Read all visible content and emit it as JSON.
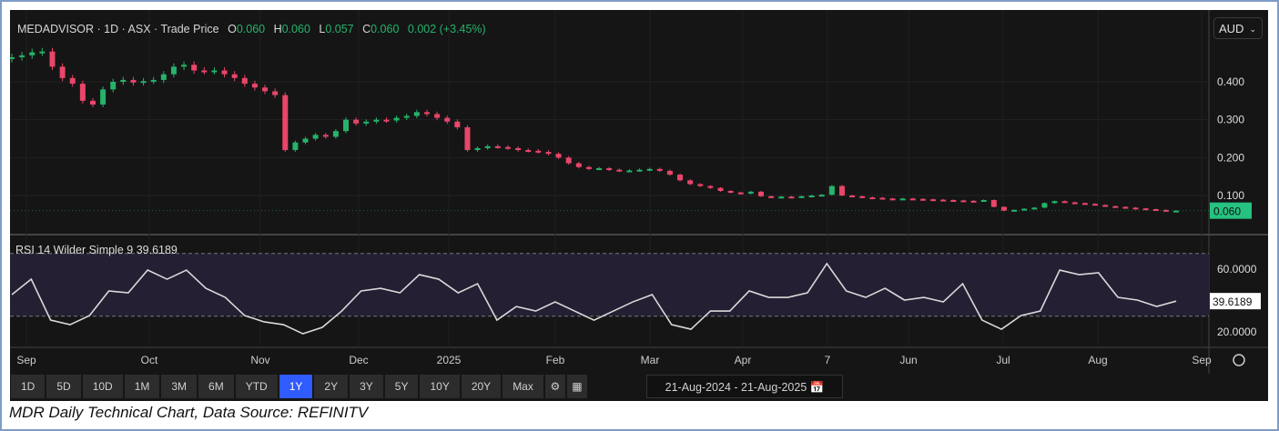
{
  "legend": {
    "symbol": "MEDADVISOR · 1D · ASX · Trade Price",
    "o_label": "O",
    "o": "0.060",
    "h_label": "H",
    "h": "0.060",
    "l_label": "L",
    "l": "0.057",
    "c_label": "C",
    "c": "0.060",
    "change": "0.002 (+3.45%)"
  },
  "currency": "AUD",
  "rsi_label": "RSI 14 Wilder Simple 9",
  "rsi_value": "39.6189",
  "toolbar": {
    "ranges": [
      "1D",
      "5D",
      "10D",
      "1M",
      "3M",
      "6M",
      "YTD",
      "1Y",
      "2Y",
      "3Y",
      "5Y",
      "10Y",
      "20Y",
      "Max"
    ],
    "active": "1Y",
    "date_range": "21-Aug-2024 - 21-Aug-2025"
  },
  "caption": "MDR Daily Technical Chart, Data Source: REFINITV",
  "colors": {
    "up": "#26b36a",
    "down": "#e8466a",
    "rsi_line": "#d9d9d9",
    "last_price_bg": "#26c281"
  },
  "chart_data": [
    {
      "type": "candlestick",
      "title": "MEDADVISOR · 1D · ASX · Trade Price",
      "ylabel": "AUD",
      "ylim": [
        0.02,
        0.52
      ],
      "yticks": [
        "0.400",
        "0.300",
        "0.200",
        "0.100"
      ],
      "ytick_values": [
        0.4,
        0.3,
        0.2,
        0.1
      ],
      "last_price": "0.060",
      "xticks": [
        "Sep",
        "Oct",
        "Nov",
        "Dec",
        "2025",
        "Feb",
        "Mar",
        "Apr",
        "7",
        "Jun",
        "Jul",
        "Aug",
        "Sep"
      ],
      "closes": [
        0.465,
        0.47,
        0.478,
        0.48,
        0.44,
        0.41,
        0.395,
        0.35,
        0.34,
        0.38,
        0.4,
        0.405,
        0.398,
        0.402,
        0.405,
        0.42,
        0.44,
        0.445,
        0.43,
        0.428,
        0.43,
        0.42,
        0.41,
        0.395,
        0.385,
        0.375,
        0.365,
        0.22,
        0.24,
        0.25,
        0.26,
        0.255,
        0.27,
        0.3,
        0.29,
        0.295,
        0.3,
        0.298,
        0.305,
        0.31,
        0.32,
        0.315,
        0.305,
        0.295,
        0.28,
        0.22,
        0.225,
        0.23,
        0.228,
        0.225,
        0.22,
        0.218,
        0.215,
        0.21,
        0.2,
        0.185,
        0.175,
        0.17,
        0.172,
        0.168,
        0.165,
        0.166,
        0.168,
        0.17,
        0.165,
        0.155,
        0.14,
        0.13,
        0.125,
        0.12,
        0.112,
        0.108,
        0.105,
        0.11,
        0.098,
        0.095,
        0.097,
        0.096,
        0.098,
        0.1,
        0.102,
        0.125,
        0.1,
        0.098,
        0.095,
        0.094,
        0.092,
        0.09,
        0.092,
        0.091,
        0.09,
        0.089,
        0.088,
        0.087,
        0.086,
        0.085,
        0.088,
        0.07,
        0.06,
        0.062,
        0.065,
        0.068,
        0.08,
        0.085,
        0.082,
        0.08,
        0.078,
        0.075,
        0.072,
        0.07,
        0.068,
        0.066,
        0.064,
        0.062,
        0.058,
        0.06
      ]
    },
    {
      "type": "line",
      "title": "RSI 14 Wilder Simple 9",
      "ylim": [
        12,
        82
      ],
      "band": [
        30,
        70
      ],
      "yticks": [
        "60.0000",
        "20.0000"
      ],
      "ytick_values": [
        60,
        20
      ],
      "last_value": "39.6189",
      "values": [
        43.8,
        53.6,
        27.5,
        24.6,
        30.4,
        46.1,
        44.9,
        59.4,
        53.6,
        59.4,
        47.8,
        42.0,
        30.4,
        26.4,
        24.6,
        18.8,
        22.9,
        33.3,
        46.1,
        47.8,
        44.9,
        56.5,
        53.6,
        44.9,
        50.7,
        27.5,
        36.2,
        33.3,
        39.1,
        33.3,
        27.5,
        33.3,
        39.1,
        43.8,
        24.6,
        21.7,
        33.3,
        33.3,
        46.1,
        42.0,
        42.0,
        44.9,
        63.5,
        46.1,
        42.0,
        47.8,
        40.3,
        42.0,
        39.1,
        50.7,
        27.5,
        21.7,
        30.4,
        33.3,
        59.4,
        56.5,
        57.7,
        42.0,
        40.3,
        36.2,
        39.6
      ]
    }
  ]
}
